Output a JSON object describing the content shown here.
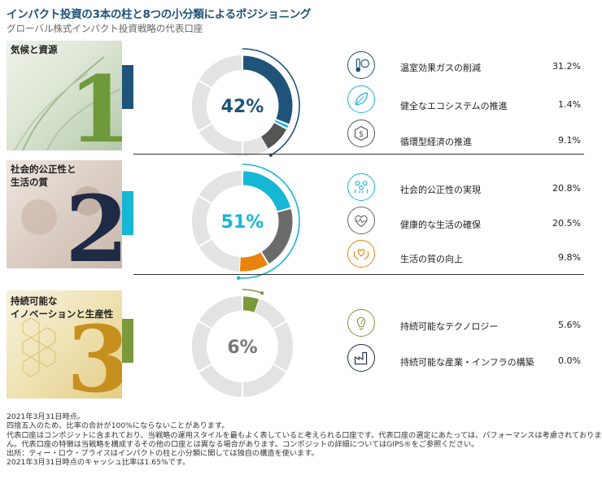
{
  "title": "インパクト投資の3本の柱と8つの小分類によるポジショニング",
  "subtitle": "グローバル株式インパクト投資戦略の代表口座",
  "colors": {
    "climate": "#1f5379",
    "social": "#16b7d4",
    "innovation": "#7a9a3b",
    "gray_dark": "#666666",
    "gray_light": "#e3e3e3",
    "orange": "#e8840e"
  },
  "chart_data": [
    {
      "type": "donut",
      "pillar": "気候と資源",
      "numeral": "1",
      "total_label": "42%",
      "slices": [
        {
          "label": "温室効果ガスの削減",
          "value": 31.2,
          "display": "31.2%",
          "color": "#1f5379",
          "icon": "thermometer-globe-icon"
        },
        {
          "label": "健全なエコシステムの推進",
          "value": 1.4,
          "display": "1.4%",
          "color": "#16b7d4",
          "icon": "leaf-icon"
        },
        {
          "label": "循環型経済の推進",
          "value": 9.1,
          "display": "9.1%",
          "color": "#555555",
          "icon": "circular-dollar-icon"
        }
      ],
      "other_total": 100
    },
    {
      "type": "donut",
      "pillar": "社会的公正性と\n生活の質",
      "numeral": "2",
      "total_label": "51%",
      "slices": [
        {
          "label": "社会的公正性の実現",
          "value": 20.8,
          "display": "20.8%",
          "color": "#16b7d4",
          "icon": "people-icon"
        },
        {
          "label": "健康的な生活の確保",
          "value": 20.5,
          "display": "20.5%",
          "color": "#6b6b6b",
          "icon": "heart-pulse-icon"
        },
        {
          "label": "生活の質の向上",
          "value": 9.8,
          "display": "9.8%",
          "color": "#e8840e",
          "icon": "hands-heart-icon"
        }
      ],
      "other_total": 100
    },
    {
      "type": "donut",
      "pillar": "持続可能な\nイノベーションと生産性",
      "numeral": "3",
      "total_label": "6%",
      "slices": [
        {
          "label": "持続可能なテクノロジー",
          "value": 5.6,
          "display": "5.6%",
          "color": "#7a9a3b",
          "icon": "lightbulb-leaf-icon"
        },
        {
          "label": "持続可能な産業・インフラの構築",
          "value": 0.0,
          "display": "0.0%",
          "color": "#7a9a3b",
          "icon": "factory-icon"
        }
      ],
      "other_total": 100
    }
  ],
  "footnotes": [
    "2021年3月31日時点。",
    "四捨五入のため、比率の合計が100%にならないことがあります。",
    "代表口座はコンポジットに含まれており、当戦略の運用スタイルを最もよく表していると考えられる口座です。代表口座の選定にあたっては、パフォーマンスは考慮されておりませ",
    "ん。代表口座の特徴は当戦略を構成するその他の口座とは異なる場合があります。コンポジットの詳細についてはGIPS®をご参照ください。",
    "出所：ティー・ロウ・プライスはインパクトの柱と小分類に関しては独自の構造を使います。",
    "2021年3月31日時点のキャッシュ比率は1.65%です。"
  ]
}
